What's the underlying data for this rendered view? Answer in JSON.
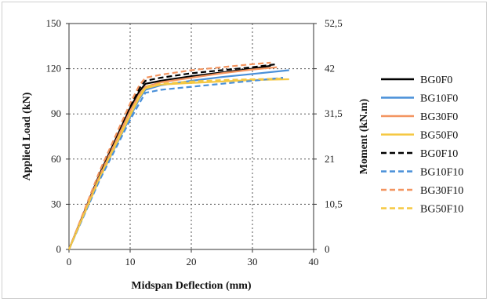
{
  "chart_data": {
    "type": "line",
    "title": "",
    "xlabel": "Midspan Deflection (mm)",
    "ylabel": "Applied Load (kN)",
    "y2label": "Moment (kN.m)",
    "xlim": [
      0,
      40
    ],
    "ylim": [
      0,
      150
    ],
    "y2lim": [
      0,
      52.5
    ],
    "x_ticks": [
      "0",
      "10",
      "20",
      "30",
      "40"
    ],
    "y_ticks": [
      "0",
      "30",
      "60",
      "90",
      "120",
      "150"
    ],
    "y2_ticks": [
      "0",
      "10,5",
      "21",
      "31,5",
      "42",
      "52,5"
    ],
    "grid": "dotted horizontal and vertical",
    "legend_position": "right",
    "series": [
      {
        "name": "BG0F0",
        "color": "#000000",
        "dash": false,
        "x": [
          0,
          5,
          10,
          11.5,
          12.5,
          15,
          20,
          25,
          30,
          33
        ],
        "y": [
          0,
          50,
          94,
          105,
          110,
          112,
          115,
          117.5,
          120,
          122
        ]
      },
      {
        "name": "BG10F0",
        "color": "#4a90d9",
        "dash": false,
        "x": [
          0,
          5,
          10,
          11.5,
          12.5,
          15,
          20,
          25,
          30,
          36
        ],
        "y": [
          0,
          47,
          88,
          100,
          106,
          109,
          112,
          114.5,
          116.5,
          119
        ]
      },
      {
        "name": "BG30F0",
        "color": "#f39560",
        "dash": false,
        "x": [
          0,
          5,
          10,
          11.5,
          12.5,
          15,
          20,
          25,
          30,
          34
        ],
        "y": [
          0,
          49,
          92,
          103,
          108,
          111,
          114,
          117,
          119.5,
          121
        ]
      },
      {
        "name": "BG50F0",
        "color": "#f5c842",
        "dash": false,
        "x": [
          0,
          5,
          10,
          11.5,
          12.5,
          15,
          20,
          25,
          30,
          36
        ],
        "y": [
          0,
          47,
          89,
          101,
          107,
          109.5,
          110.5,
          111.5,
          112.5,
          113
        ]
      },
      {
        "name": "BG0F10",
        "color": "#000000",
        "dash": true,
        "x": [
          0,
          5,
          10,
          11.5,
          12.5,
          15,
          20,
          25,
          30,
          34
        ],
        "y": [
          0,
          51,
          95,
          107,
          112,
          114,
          117,
          119,
          121,
          123
        ]
      },
      {
        "name": "BG10F10",
        "color": "#4a90d9",
        "dash": true,
        "x": [
          0,
          5,
          10,
          11.5,
          12.5,
          15,
          20,
          25,
          30,
          35
        ],
        "y": [
          0,
          46,
          86,
          97,
          104,
          106,
          108,
          110,
          112,
          114
        ]
      },
      {
        "name": "BG30F10",
        "color": "#f39560",
        "dash": true,
        "x": [
          0,
          5,
          10,
          11.5,
          12.5,
          15,
          20,
          25,
          30,
          33
        ],
        "y": [
          0,
          52,
          97,
          109,
          114,
          116,
          119,
          121,
          123,
          124
        ]
      },
      {
        "name": "BG50F10",
        "color": "#f5c842",
        "dash": true,
        "x": [
          0,
          5,
          10,
          11.5,
          12.5,
          15,
          20,
          25,
          30,
          35
        ],
        "y": [
          0,
          48,
          90,
          102,
          108,
          110,
          111.5,
          112.5,
          113,
          113.5
        ]
      }
    ]
  }
}
